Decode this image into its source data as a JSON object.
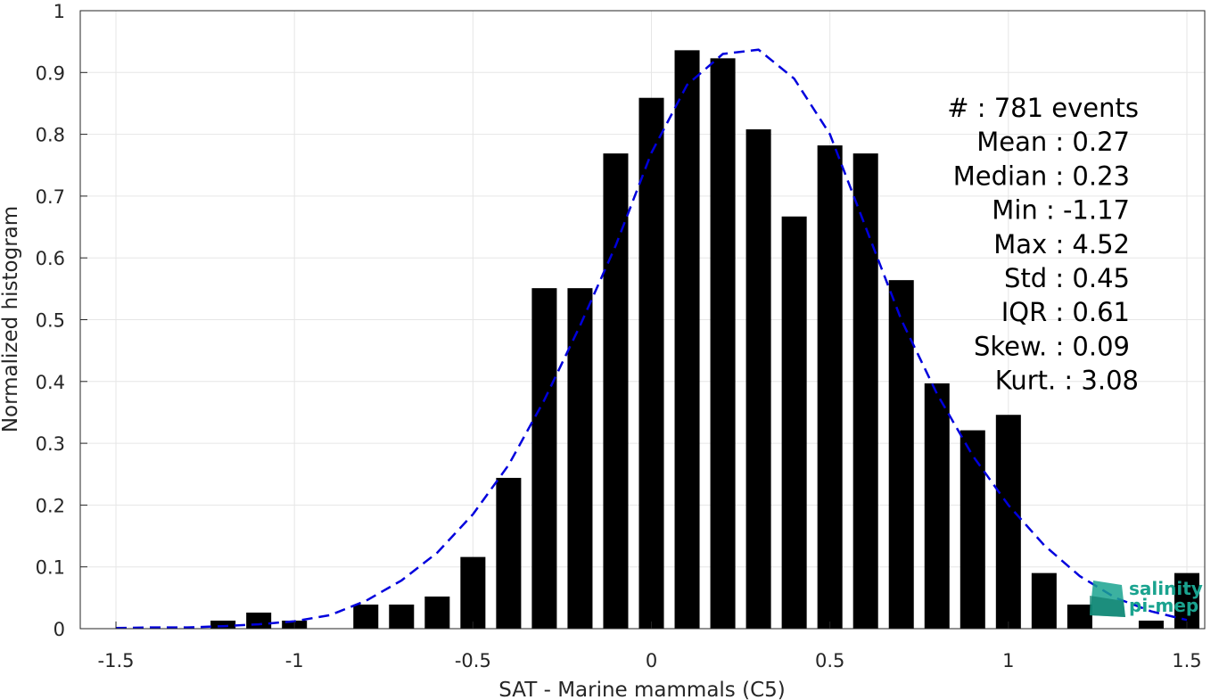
{
  "chart_data": {
    "type": "bar",
    "xlabel": "SAT - Marine mammals (C5)",
    "ylabel": "Normalized histogram",
    "xlim": [
      -1.6,
      1.55
    ],
    "ylim": [
      0,
      1
    ],
    "xticks": [
      "-1.5",
      "-1",
      "-0.5",
      "0",
      "0.5",
      "1",
      "1.5"
    ],
    "xtick_values": [
      -1.5,
      -1,
      -0.5,
      0,
      0.5,
      1,
      1.5
    ],
    "yticks": [
      "0",
      "0.1",
      "0.2",
      "0.3",
      "0.4",
      "0.5",
      "0.6",
      "0.7",
      "0.8",
      "0.9",
      "1"
    ],
    "ytick_values": [
      0,
      0.1,
      0.2,
      0.3,
      0.4,
      0.5,
      0.6,
      0.7,
      0.8,
      0.9,
      1
    ],
    "grid": true,
    "bar_color": "#000000",
    "fit_color": "#0000dd",
    "bars": {
      "x": [
        -1.2,
        -1.1,
        -1.0,
        -0.8,
        -0.7,
        -0.6,
        -0.5,
        -0.4,
        -0.3,
        -0.2,
        -0.1,
        0.0,
        0.1,
        0.2,
        0.3,
        0.4,
        0.5,
        0.6,
        0.7,
        0.8,
        0.9,
        1.0,
        1.1,
        1.2,
        1.4,
        1.5
      ],
      "values": [
        0.013,
        0.026,
        0.013,
        0.039,
        0.039,
        0.052,
        0.116,
        0.244,
        0.551,
        0.551,
        0.769,
        0.859,
        0.936,
        0.923,
        0.808,
        0.667,
        0.782,
        0.769,
        0.564,
        0.397,
        0.321,
        0.346,
        0.09,
        0.039,
        0.013,
        0.09
      ]
    },
    "fit": {
      "style": "dashed",
      "x": [
        -1.5,
        -1.4,
        -1.3,
        -1.2,
        -1.1,
        -1.0,
        -0.9,
        -0.8,
        -0.7,
        -0.6,
        -0.5,
        -0.4,
        -0.3,
        -0.2,
        -0.1,
        0.0,
        0.1,
        0.2,
        0.3,
        0.4,
        0.5,
        0.6,
        0.7,
        0.8,
        0.9,
        1.0,
        1.1,
        1.2,
        1.3,
        1.4,
        1.5
      ],
      "y": [
        0.001,
        0.002,
        0.002,
        0.004,
        0.007,
        0.012,
        0.022,
        0.045,
        0.078,
        0.123,
        0.185,
        0.265,
        0.37,
        0.49,
        0.62,
        0.77,
        0.88,
        0.93,
        0.937,
        0.89,
        0.8,
        0.65,
        0.5,
        0.38,
        0.28,
        0.2,
        0.135,
        0.085,
        0.05,
        0.028,
        0.014
      ]
    },
    "stats": [
      {
        "label": "#  : 781 events"
      },
      {
        "label": "Mean : 0.27"
      },
      {
        "label": "Median : 0.23"
      },
      {
        "label": "Min : -1.17"
      },
      {
        "label": "Max : 4.52"
      },
      {
        "label": "Std : 0.45"
      },
      {
        "label": "IQR : 0.61"
      },
      {
        "label": "Skew. : 0.09"
      },
      {
        "label": "Kurt. : 3.08"
      }
    ]
  },
  "logo": {
    "line1": "salinity",
    "line2": "pi-mep",
    "color": "#1aa38f"
  }
}
